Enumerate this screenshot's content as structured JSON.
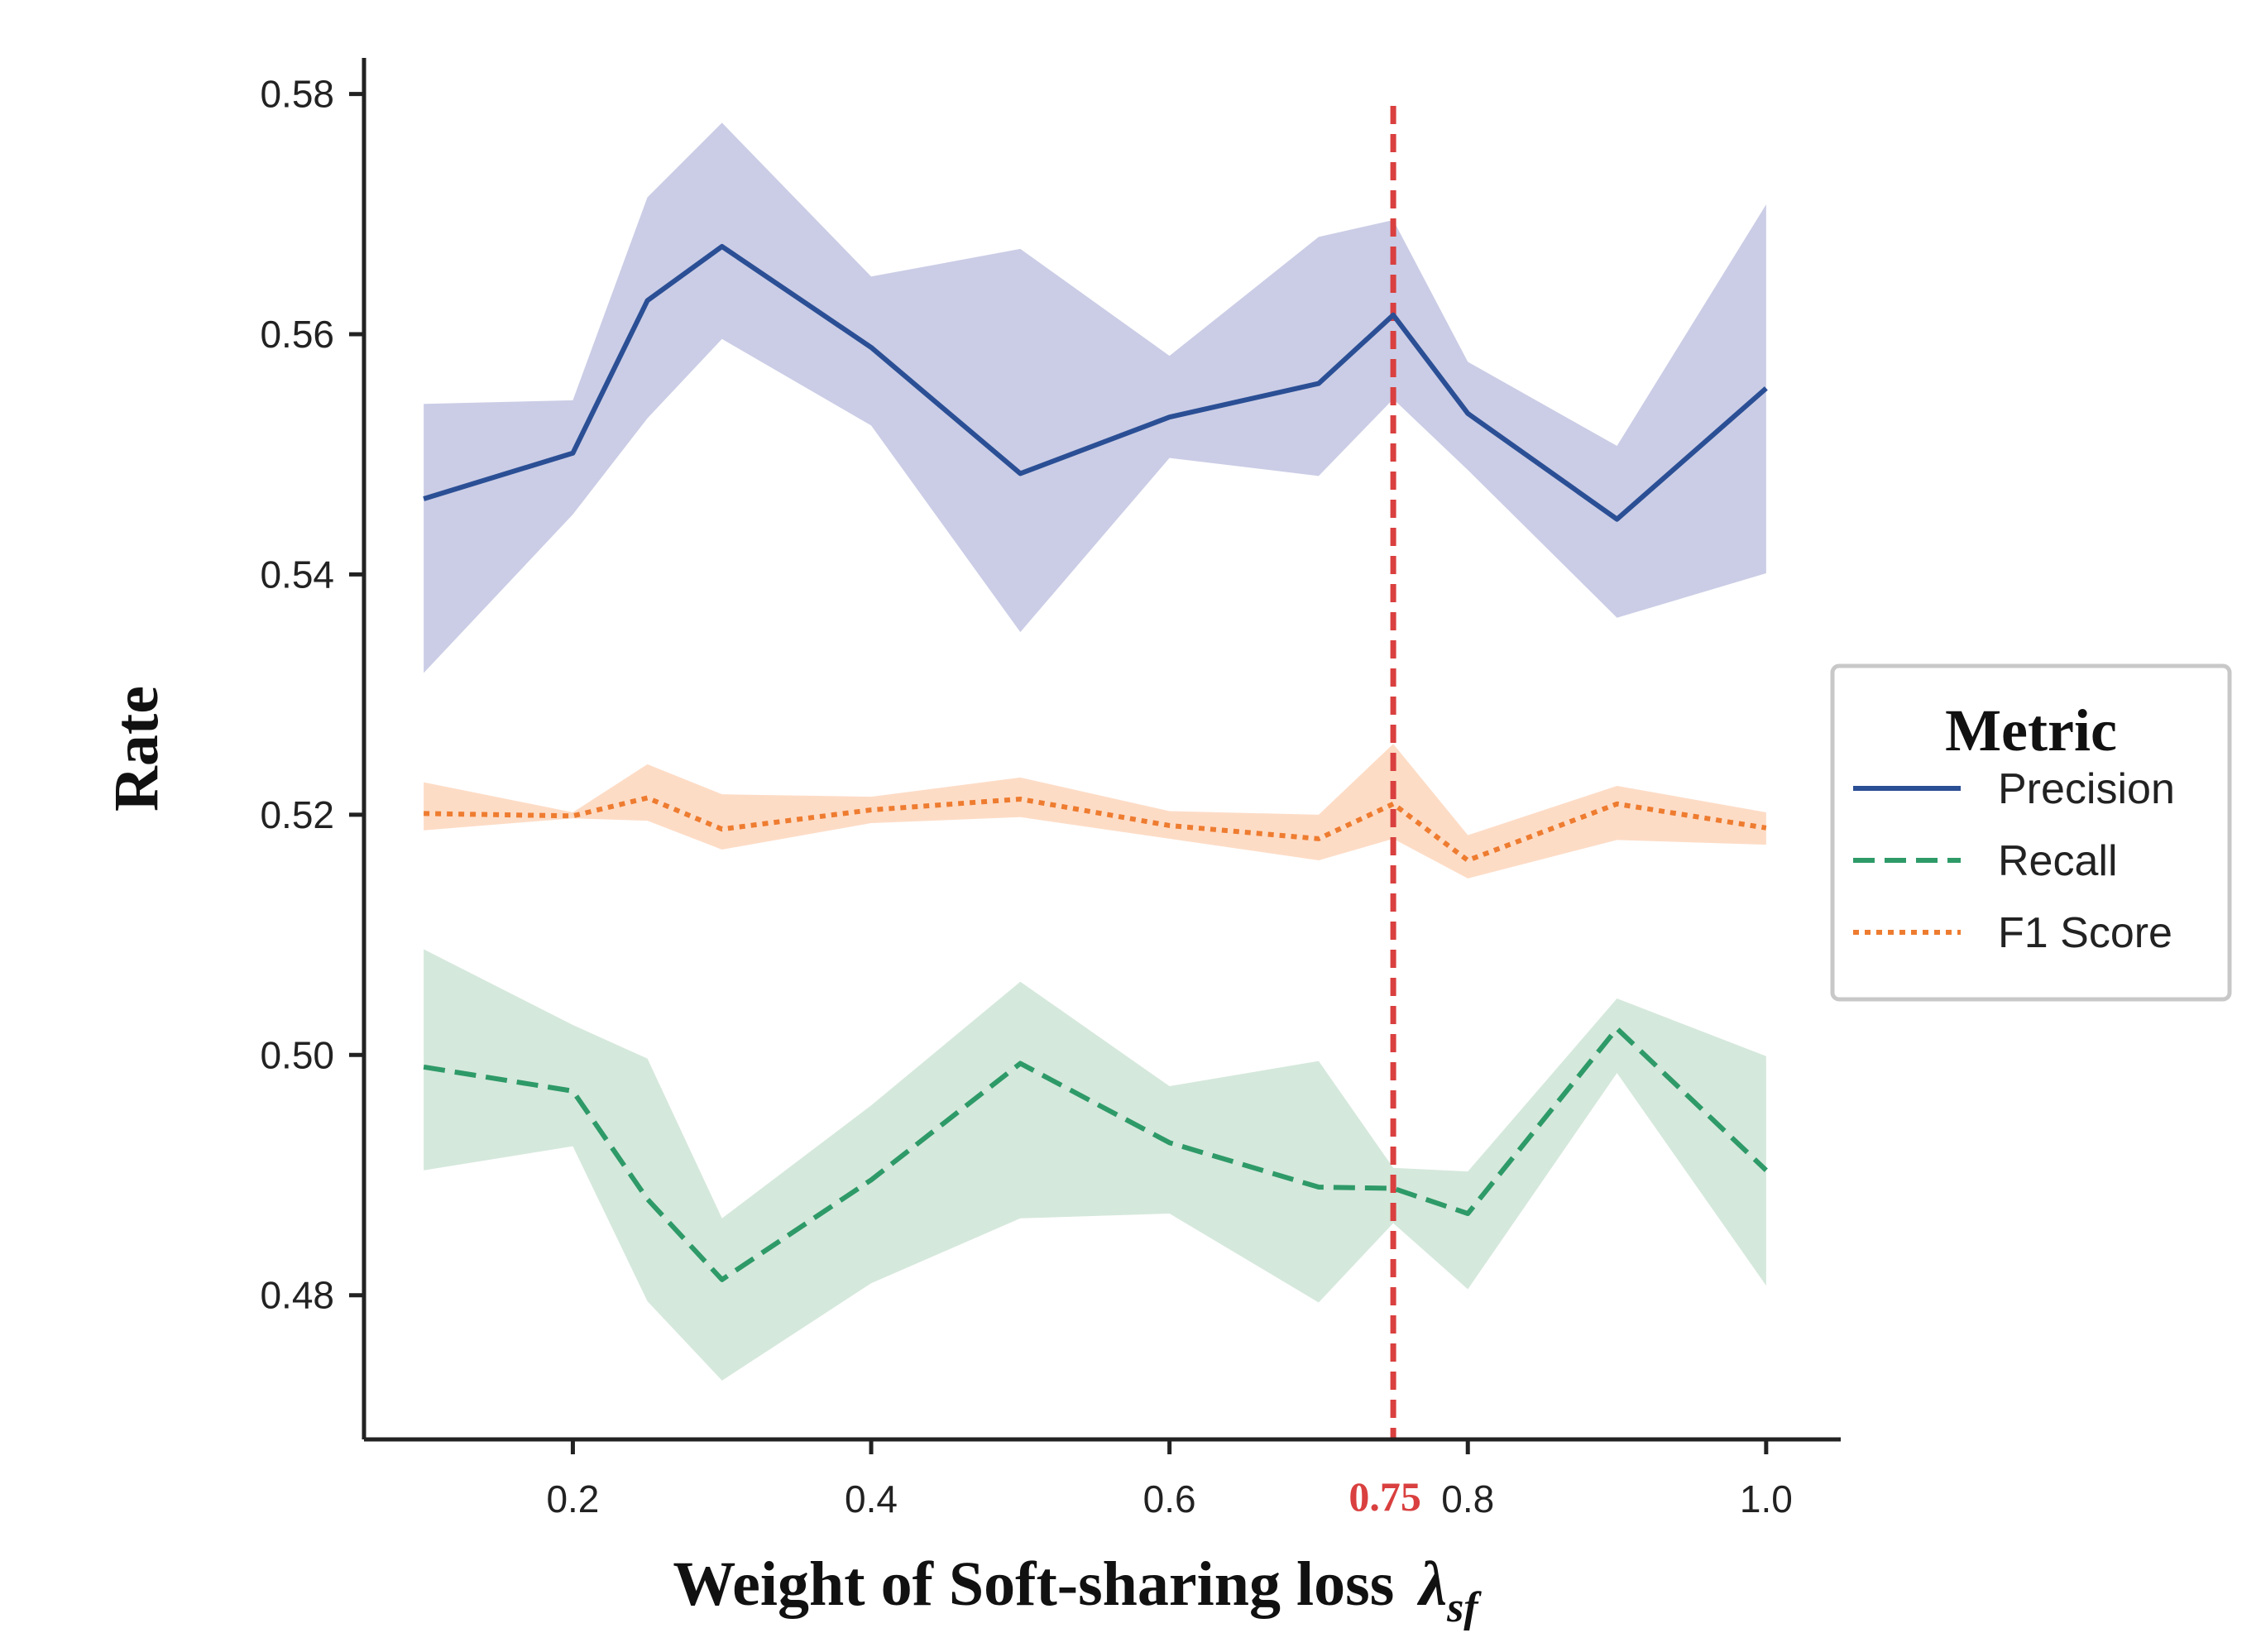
{
  "chart_data": {
    "type": "line",
    "title": "",
    "xlabel": "Weight of Soft-sharing loss",
    "xlabel_symbol": "λ",
    "xlabel_subscript": "sf",
    "ylabel": "Rate",
    "xlim": [
      0.06,
      1.05
    ],
    "ylim": [
      0.468,
      0.583
    ],
    "x_ticks": [
      0.2,
      0.4,
      0.6,
      0.8,
      1.0
    ],
    "x_tick_labels": [
      "0.2",
      "0.4",
      "0.6",
      "0.8",
      "1.0"
    ],
    "y_ticks": [
      0.48,
      0.5,
      0.52,
      0.54,
      0.56,
      0.58
    ],
    "y_tick_labels": [
      "0.48",
      "0.50",
      "0.52",
      "0.54",
      "0.56",
      "0.58"
    ],
    "grid": false,
    "x": [
      0.1,
      0.2,
      0.25,
      0.3,
      0.4,
      0.5,
      0.6,
      0.7,
      0.75,
      0.8,
      0.9,
      1.0
    ],
    "series": [
      {
        "name": "Precision",
        "color": "#2b4f95",
        "style": "solid",
        "band_color": "#cbcde6",
        "values": [
          0.5463,
          0.5501,
          0.5628,
          0.5673,
          0.5589,
          0.5484,
          0.5531,
          0.5559,
          0.5616,
          0.5534,
          0.5446,
          0.5555
        ],
        "lower": [
          0.5318,
          0.545,
          0.553,
          0.5596,
          0.5524,
          0.5352,
          0.5497,
          0.5482,
          0.5546,
          0.5487,
          0.5364,
          0.5401
        ],
        "upper": [
          0.5542,
          0.5545,
          0.5714,
          0.5776,
          0.5648,
          0.5671,
          0.5582,
          0.5681,
          0.5695,
          0.5577,
          0.5507,
          0.5708
        ]
      },
      {
        "name": "Recall",
        "color": "#2e9a68",
        "style": "dashed",
        "band_color": "#d5e8dc",
        "values": [
          0.499,
          0.497,
          0.488,
          0.4813,
          0.4896,
          0.4993,
          0.4927,
          0.489,
          0.4889,
          0.4868,
          0.5022,
          0.4904
        ],
        "lower": [
          0.4904,
          0.4924,
          0.4795,
          0.4729,
          0.481,
          0.4864,
          0.4868,
          0.4794,
          0.486,
          0.4805,
          0.4985,
          0.4808
        ],
        "upper": [
          0.5088,
          0.5025,
          0.4997,
          0.4864,
          0.4958,
          0.5061,
          0.4974,
          0.4995,
          0.4906,
          0.4903,
          0.5047,
          0.4999
        ]
      },
      {
        "name": "F1 Score",
        "color": "#ee7c30",
        "style": "dotted",
        "band_color": "#fddcc6",
        "values": [
          0.5201,
          0.5199,
          0.5214,
          0.5188,
          0.5204,
          0.5213,
          0.5191,
          0.518,
          0.5209,
          0.5162,
          0.5209,
          0.5189
        ],
        "lower": [
          0.5187,
          0.5197,
          0.5195,
          0.5171,
          0.5193,
          0.5198,
          0.518,
          0.5162,
          0.518,
          0.5147,
          0.5179,
          0.5175
        ],
        "upper": [
          0.5227,
          0.5202,
          0.5242,
          0.5217,
          0.5215,
          0.5231,
          0.5203,
          0.52,
          0.5259,
          0.5183,
          0.5224,
          0.5202
        ]
      }
    ],
    "reference_line": {
      "x": 0.75,
      "label": "0.75",
      "color": "#d9403f",
      "style": "dashed"
    },
    "legend": {
      "title": "Metric",
      "position": "right"
    }
  }
}
